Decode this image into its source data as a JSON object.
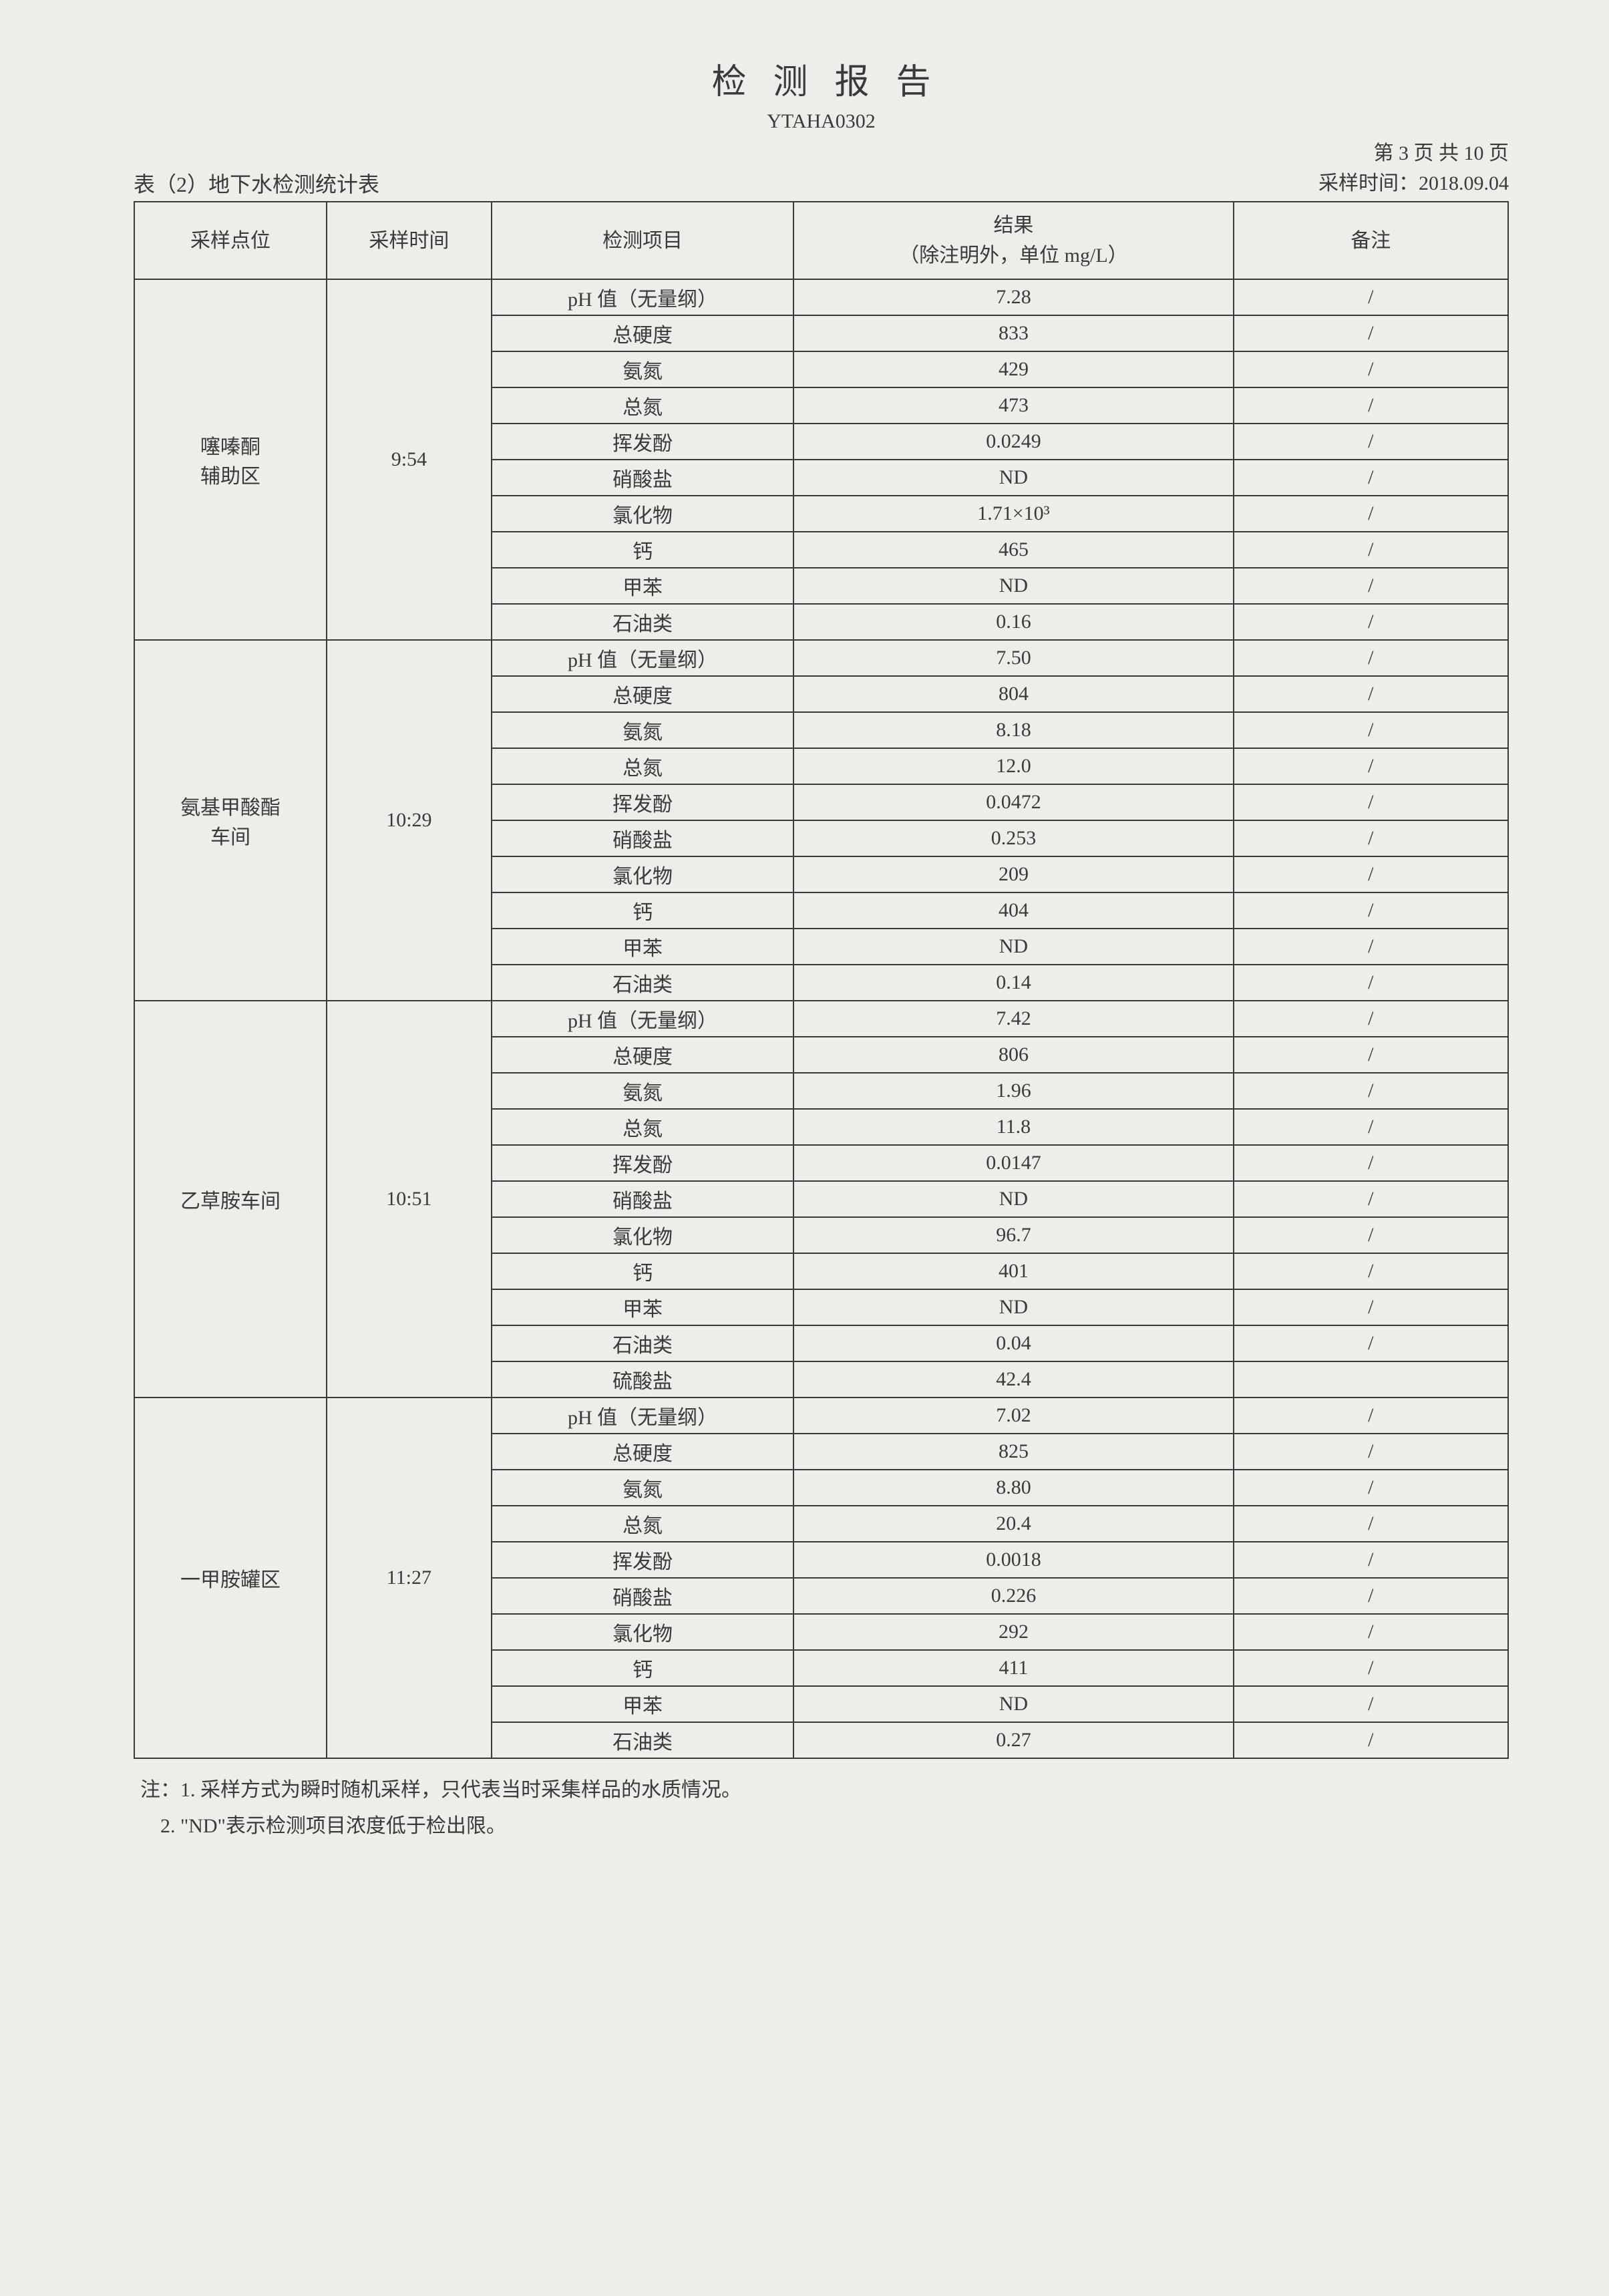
{
  "title": "检测报告",
  "doc_code": "YTAHA0302",
  "table_caption": "表（2）地下水检测统计表",
  "page_label": "第 3 页 共 10 页",
  "sampling_date_label": "采样时间：2018.09.04",
  "headers": {
    "point": "采样点位",
    "time": "采样时间",
    "item": "检测项目",
    "result": "结果\n（除注明外，单位 mg/L）",
    "remark": "备注"
  },
  "groups": [
    {
      "point": "噻嗪酮\n辅助区",
      "time": "9:54",
      "rows": [
        {
          "item": "pH 值（无量纲）",
          "result": "7.28",
          "remark": "/"
        },
        {
          "item": "总硬度",
          "result": "833",
          "remark": "/"
        },
        {
          "item": "氨氮",
          "result": "429",
          "remark": "/"
        },
        {
          "item": "总氮",
          "result": "473",
          "remark": "/"
        },
        {
          "item": "挥发酚",
          "result": "0.0249",
          "remark": "/"
        },
        {
          "item": "硝酸盐",
          "result": "ND",
          "remark": "/"
        },
        {
          "item": "氯化物",
          "result": "1.71×10³",
          "remark": "/"
        },
        {
          "item": "钙",
          "result": "465",
          "remark": "/"
        },
        {
          "item": "甲苯",
          "result": "ND",
          "remark": "/"
        },
        {
          "item": "石油类",
          "result": "0.16",
          "remark": "/"
        }
      ]
    },
    {
      "point": "氨基甲酸酯\n车间",
      "time": "10:29",
      "rows": [
        {
          "item": "pH 值（无量纲）",
          "result": "7.50",
          "remark": "/"
        },
        {
          "item": "总硬度",
          "result": "804",
          "remark": "/"
        },
        {
          "item": "氨氮",
          "result": "8.18",
          "remark": "/"
        },
        {
          "item": "总氮",
          "result": "12.0",
          "remark": "/"
        },
        {
          "item": "挥发酚",
          "result": "0.0472",
          "remark": "/"
        },
        {
          "item": "硝酸盐",
          "result": "0.253",
          "remark": "/"
        },
        {
          "item": "氯化物",
          "result": "209",
          "remark": "/"
        },
        {
          "item": "钙",
          "result": "404",
          "remark": "/"
        },
        {
          "item": "甲苯",
          "result": "ND",
          "remark": "/"
        },
        {
          "item": "石油类",
          "result": "0.14",
          "remark": "/"
        }
      ]
    },
    {
      "point": "乙草胺车间",
      "time": "10:51",
      "rows": [
        {
          "item": "pH 值（无量纲）",
          "result": "7.42",
          "remark": "/"
        },
        {
          "item": "总硬度",
          "result": "806",
          "remark": "/"
        },
        {
          "item": "氨氮",
          "result": "1.96",
          "remark": "/"
        },
        {
          "item": "总氮",
          "result": "11.8",
          "remark": "/"
        },
        {
          "item": "挥发酚",
          "result": "0.0147",
          "remark": "/"
        },
        {
          "item": "硝酸盐",
          "result": "ND",
          "remark": "/"
        },
        {
          "item": "氯化物",
          "result": "96.7",
          "remark": "/"
        },
        {
          "item": "钙",
          "result": "401",
          "remark": "/"
        },
        {
          "item": "甲苯",
          "result": "ND",
          "remark": "/"
        },
        {
          "item": "石油类",
          "result": "0.04",
          "remark": "/"
        },
        {
          "item": "硫酸盐",
          "result": "42.4",
          "remark": ""
        }
      ]
    },
    {
      "point": "一甲胺罐区",
      "time": "11:27",
      "rows": [
        {
          "item": "pH 值（无量纲）",
          "result": "7.02",
          "remark": "/"
        },
        {
          "item": "总硬度",
          "result": "825",
          "remark": "/"
        },
        {
          "item": "氨氮",
          "result": "8.80",
          "remark": "/"
        },
        {
          "item": "总氮",
          "result": "20.4",
          "remark": "/"
        },
        {
          "item": "挥发酚",
          "result": "0.0018",
          "remark": "/"
        },
        {
          "item": "硝酸盐",
          "result": "0.226",
          "remark": "/"
        },
        {
          "item": "氯化物",
          "result": "292",
          "remark": "/"
        },
        {
          "item": "钙",
          "result": "411",
          "remark": "/"
        },
        {
          "item": "甲苯",
          "result": "ND",
          "remark": "/"
        },
        {
          "item": "石油类",
          "result": "0.27",
          "remark": "/"
        }
      ]
    }
  ],
  "notes": {
    "prefix": "注：",
    "items": [
      "1. 采样方式为瞬时随机采样，只代表当时采集样品的水质情况。",
      "2. \"ND\"表示检测项目浓度低于检出限。"
    ]
  }
}
